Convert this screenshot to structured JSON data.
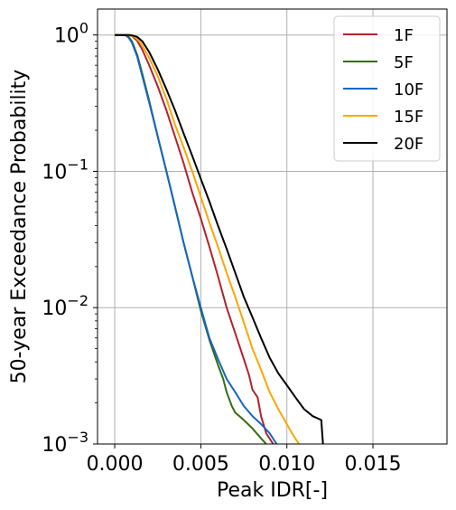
{
  "chart_data": {
    "type": "line",
    "title": "",
    "xlabel": "Peak IDR[-]",
    "ylabel": "50-year Exceedance Probability",
    "xlim": [
      -0.001,
      0.0193
    ],
    "ylim": [
      0.001,
      1.55
    ],
    "yscale": "log",
    "grid": true,
    "legend_position": "top-right",
    "x_ticks": [
      {
        "value": 0.0,
        "label": "0.000"
      },
      {
        "value": 0.005,
        "label": "0.005"
      },
      {
        "value": 0.01,
        "label": "0.010"
      },
      {
        "value": 0.015,
        "label": "0.015"
      }
    ],
    "y_ticks": [
      {
        "value": 1,
        "base": "10",
        "exp": "0"
      },
      {
        "value": 0.1,
        "base": "10",
        "exp": "−1"
      },
      {
        "value": 0.01,
        "base": "10",
        "exp": "−2"
      },
      {
        "value": 0.001,
        "base": "10",
        "exp": "−3"
      }
    ],
    "series": [
      {
        "name": "1F",
        "color": "#b2222b",
        "points": [
          [
            0.0,
            1.0
          ],
          [
            0.0007,
            1.0
          ],
          [
            0.001,
            0.98
          ],
          [
            0.0013,
            0.91
          ],
          [
            0.0016,
            0.78
          ],
          [
            0.002,
            0.6
          ],
          [
            0.0025,
            0.42
          ],
          [
            0.003,
            0.28
          ],
          [
            0.0035,
            0.18
          ],
          [
            0.004,
            0.115
          ],
          [
            0.0045,
            0.07
          ],
          [
            0.005,
            0.045
          ],
          [
            0.0055,
            0.028
          ],
          [
            0.006,
            0.017
          ],
          [
            0.0065,
            0.01
          ],
          [
            0.007,
            0.0065
          ],
          [
            0.0075,
            0.0042
          ],
          [
            0.0078,
            0.0032
          ],
          [
            0.008,
            0.0025
          ],
          [
            0.0083,
            0.0022
          ],
          [
            0.0085,
            0.0016
          ],
          [
            0.0088,
            0.0012
          ],
          [
            0.0092,
            0.001
          ]
        ]
      },
      {
        "name": "5F",
        "color": "#336d10",
        "points": [
          [
            0.0,
            1.0
          ],
          [
            0.0006,
            1.0
          ],
          [
            0.0008,
            0.97
          ],
          [
            0.001,
            0.9
          ],
          [
            0.0013,
            0.72
          ],
          [
            0.0016,
            0.52
          ],
          [
            0.002,
            0.33
          ],
          [
            0.0025,
            0.18
          ],
          [
            0.003,
            0.1
          ],
          [
            0.0035,
            0.055
          ],
          [
            0.004,
            0.03
          ],
          [
            0.0045,
            0.017
          ],
          [
            0.005,
            0.0095
          ],
          [
            0.0055,
            0.0058
          ],
          [
            0.006,
            0.0038
          ],
          [
            0.0063,
            0.003
          ],
          [
            0.0065,
            0.0024
          ],
          [
            0.0068,
            0.0019
          ],
          [
            0.007,
            0.0017
          ],
          [
            0.0075,
            0.0015
          ],
          [
            0.008,
            0.0013
          ],
          [
            0.0085,
            0.0011
          ],
          [
            0.0088,
            0.001
          ]
        ]
      },
      {
        "name": "10F",
        "color": "#1565c0",
        "points": [
          [
            0.0,
            1.0
          ],
          [
            0.0006,
            1.0
          ],
          [
            0.0008,
            0.96
          ],
          [
            0.001,
            0.88
          ],
          [
            0.0013,
            0.7
          ],
          [
            0.0016,
            0.5
          ],
          [
            0.002,
            0.32
          ],
          [
            0.0025,
            0.18
          ],
          [
            0.003,
            0.1
          ],
          [
            0.0035,
            0.055
          ],
          [
            0.004,
            0.03
          ],
          [
            0.0045,
            0.017
          ],
          [
            0.005,
            0.01
          ],
          [
            0.0055,
            0.006
          ],
          [
            0.006,
            0.0042
          ],
          [
            0.0065,
            0.003
          ],
          [
            0.007,
            0.0024
          ],
          [
            0.0075,
            0.0019
          ],
          [
            0.008,
            0.0016
          ],
          [
            0.0085,
            0.0014
          ],
          [
            0.009,
            0.0012
          ],
          [
            0.0094,
            0.001
          ]
        ]
      },
      {
        "name": "15F",
        "color": "#ffa500",
        "points": [
          [
            0.0,
            1.0
          ],
          [
            0.0008,
            1.0
          ],
          [
            0.0012,
            0.96
          ],
          [
            0.0015,
            0.88
          ],
          [
            0.002,
            0.68
          ],
          [
            0.0025,
            0.5
          ],
          [
            0.003,
            0.34
          ],
          [
            0.0035,
            0.22
          ],
          [
            0.004,
            0.15
          ],
          [
            0.0045,
            0.1
          ],
          [
            0.005,
            0.065
          ],
          [
            0.0055,
            0.042
          ],
          [
            0.006,
            0.028
          ],
          [
            0.0065,
            0.018
          ],
          [
            0.007,
            0.012
          ],
          [
            0.0075,
            0.0078
          ],
          [
            0.008,
            0.005
          ],
          [
            0.0085,
            0.0035
          ],
          [
            0.009,
            0.0024
          ],
          [
            0.0095,
            0.0018
          ],
          [
            0.01,
            0.0014
          ],
          [
            0.0103,
            0.0012
          ],
          [
            0.0107,
            0.001
          ]
        ]
      },
      {
        "name": "20F",
        "color": "#000000",
        "points": [
          [
            0.0,
            1.0
          ],
          [
            0.0009,
            1.0
          ],
          [
            0.0013,
            0.97
          ],
          [
            0.0016,
            0.9
          ],
          [
            0.002,
            0.75
          ],
          [
            0.0025,
            0.56
          ],
          [
            0.003,
            0.4
          ],
          [
            0.0035,
            0.28
          ],
          [
            0.004,
            0.19
          ],
          [
            0.0045,
            0.13
          ],
          [
            0.005,
            0.088
          ],
          [
            0.0055,
            0.06
          ],
          [
            0.006,
            0.04
          ],
          [
            0.0065,
            0.027
          ],
          [
            0.007,
            0.018
          ],
          [
            0.0075,
            0.012
          ],
          [
            0.008,
            0.0085
          ],
          [
            0.0085,
            0.006
          ],
          [
            0.009,
            0.0043
          ],
          [
            0.0095,
            0.0033
          ],
          [
            0.01,
            0.0027
          ],
          [
            0.0105,
            0.0022
          ],
          [
            0.011,
            0.0018
          ],
          [
            0.0115,
            0.0016
          ],
          [
            0.012,
            0.0015
          ],
          [
            0.0121,
            0.001
          ]
        ]
      }
    ]
  }
}
